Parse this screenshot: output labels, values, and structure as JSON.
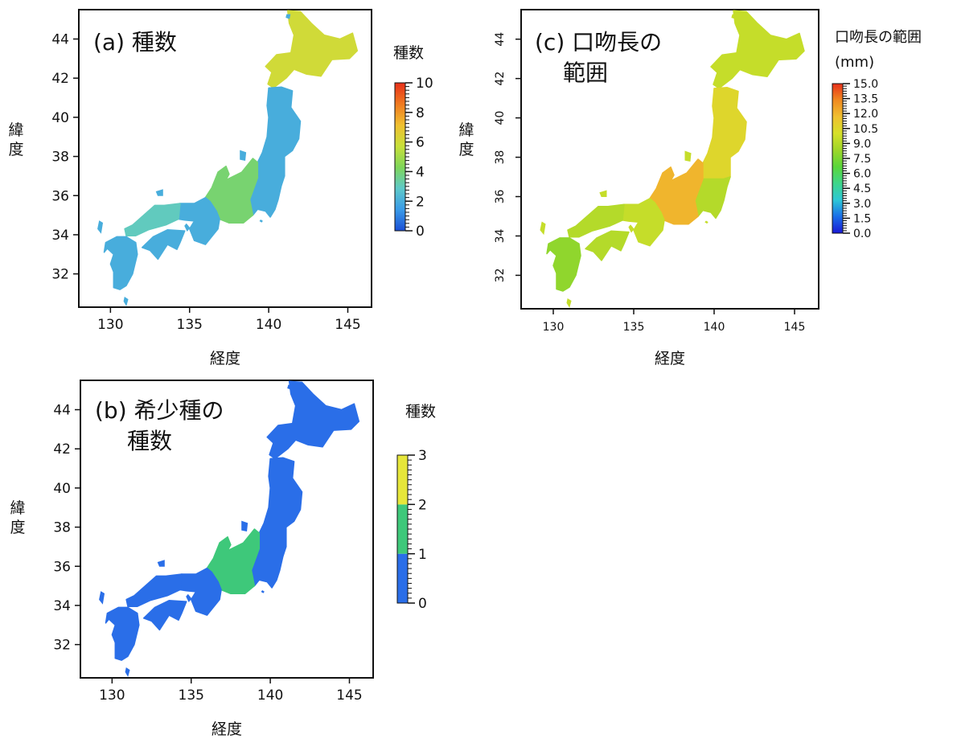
{
  "chart_data": [
    {
      "type": "heatmap",
      "panel": "a",
      "title": "(a) 種数",
      "xlabel": "経度",
      "ylabel": "緯度",
      "xlim": [
        128,
        146.5
      ],
      "ylim": [
        30.3,
        45.5
      ],
      "xticks": [
        "130",
        "135",
        "140",
        "145"
      ],
      "yticks": [
        "32",
        "34",
        "36",
        "38",
        "40",
        "42",
        "44"
      ],
      "colorbar": {
        "title": "種数",
        "min": 0,
        "max": 10,
        "ticks": [
          "0",
          "2",
          "4",
          "6",
          "8",
          "10"
        ],
        "colors": [
          "#1a4fd6",
          "#3a9be8",
          "#5ec9c9",
          "#7fd65a",
          "#c8e03a",
          "#f0c030",
          "#f07a20",
          "#e8301a"
        ]
      },
      "regions": [
        {
          "name": "Hokkaido",
          "value": 6
        },
        {
          "name": "Tohoku",
          "value": 2
        },
        {
          "name": "Kanto",
          "value": 2
        },
        {
          "name": "Chubu",
          "value": 4
        },
        {
          "name": "Kinki",
          "value": 2
        },
        {
          "name": "Chugoku",
          "value": 3
        },
        {
          "name": "Shikoku",
          "value": 2
        },
        {
          "name": "Kyushu",
          "value": 2
        }
      ]
    },
    {
      "type": "heatmap",
      "panel": "b",
      "title": "(b) 希少種の\n種数",
      "title_lines": [
        "(b) 希少種の",
        "種数"
      ],
      "xlabel": "経度",
      "ylabel": "緯度",
      "xlim": [
        128,
        146.5
      ],
      "ylim": [
        30.3,
        45.5
      ],
      "xticks": [
        "130",
        "135",
        "140",
        "145"
      ],
      "yticks": [
        "32",
        "34",
        "36",
        "38",
        "40",
        "42",
        "44"
      ],
      "colorbar": {
        "title": "種数",
        "min": 0,
        "max": 3,
        "ticks": [
          "0",
          "1",
          "2",
          "3"
        ],
        "colors": [
          "#2a6ee8",
          "#3ec87a",
          "#e6e63a"
        ]
      },
      "regions": [
        {
          "name": "Hokkaido",
          "value": 0
        },
        {
          "name": "Tohoku",
          "value": 0
        },
        {
          "name": "Kanto",
          "value": 0
        },
        {
          "name": "Chubu",
          "value": 1
        },
        {
          "name": "Kinki",
          "value": 0
        },
        {
          "name": "Chugoku",
          "value": 0
        },
        {
          "name": "Shikoku",
          "value": 0
        },
        {
          "name": "Kyushu",
          "value": 0
        }
      ]
    },
    {
      "type": "heatmap",
      "panel": "c",
      "title": "(c) 口吻長の\n範囲",
      "title_lines": [
        "(c) 口吻長の",
        "範囲"
      ],
      "xlabel": "経度",
      "ylabel": "緯度",
      "xlim": [
        128,
        146.5
      ],
      "ylim": [
        30.3,
        45.5
      ],
      "xticks": [
        "130",
        "135",
        "140",
        "145"
      ],
      "yticks": [
        "32",
        "34",
        "36",
        "38",
        "40",
        "42",
        "44"
      ],
      "colorbar": {
        "title_lines": [
          "口吻長の範囲",
          "(mm)"
        ],
        "min": 0,
        "max": 15,
        "ticks": [
          "0.0",
          "1.5",
          "3.0",
          "4.5",
          "6.0",
          "7.5",
          "9.0",
          "10.5",
          "12.0",
          "13.5",
          "15.0"
        ],
        "colors": [
          "#1a1ad6",
          "#1a6ee8",
          "#2ec8d6",
          "#3ed68a",
          "#5ad63a",
          "#9ed62a",
          "#d6e02a",
          "#f0c030",
          "#f08a20",
          "#e8301a"
        ]
      },
      "regions": [
        {
          "name": "Hokkaido",
          "value": 9.5
        },
        {
          "name": "Tohoku",
          "value": 10.5
        },
        {
          "name": "Kanto",
          "value": 9.0
        },
        {
          "name": "Chubu",
          "value": 12.0
        },
        {
          "name": "Kinki",
          "value": 9.5
        },
        {
          "name": "Chugoku",
          "value": 9.0
        },
        {
          "name": "Shikoku",
          "value": 9.0
        },
        {
          "name": "Kyushu",
          "value": 8.0
        }
      ]
    }
  ]
}
